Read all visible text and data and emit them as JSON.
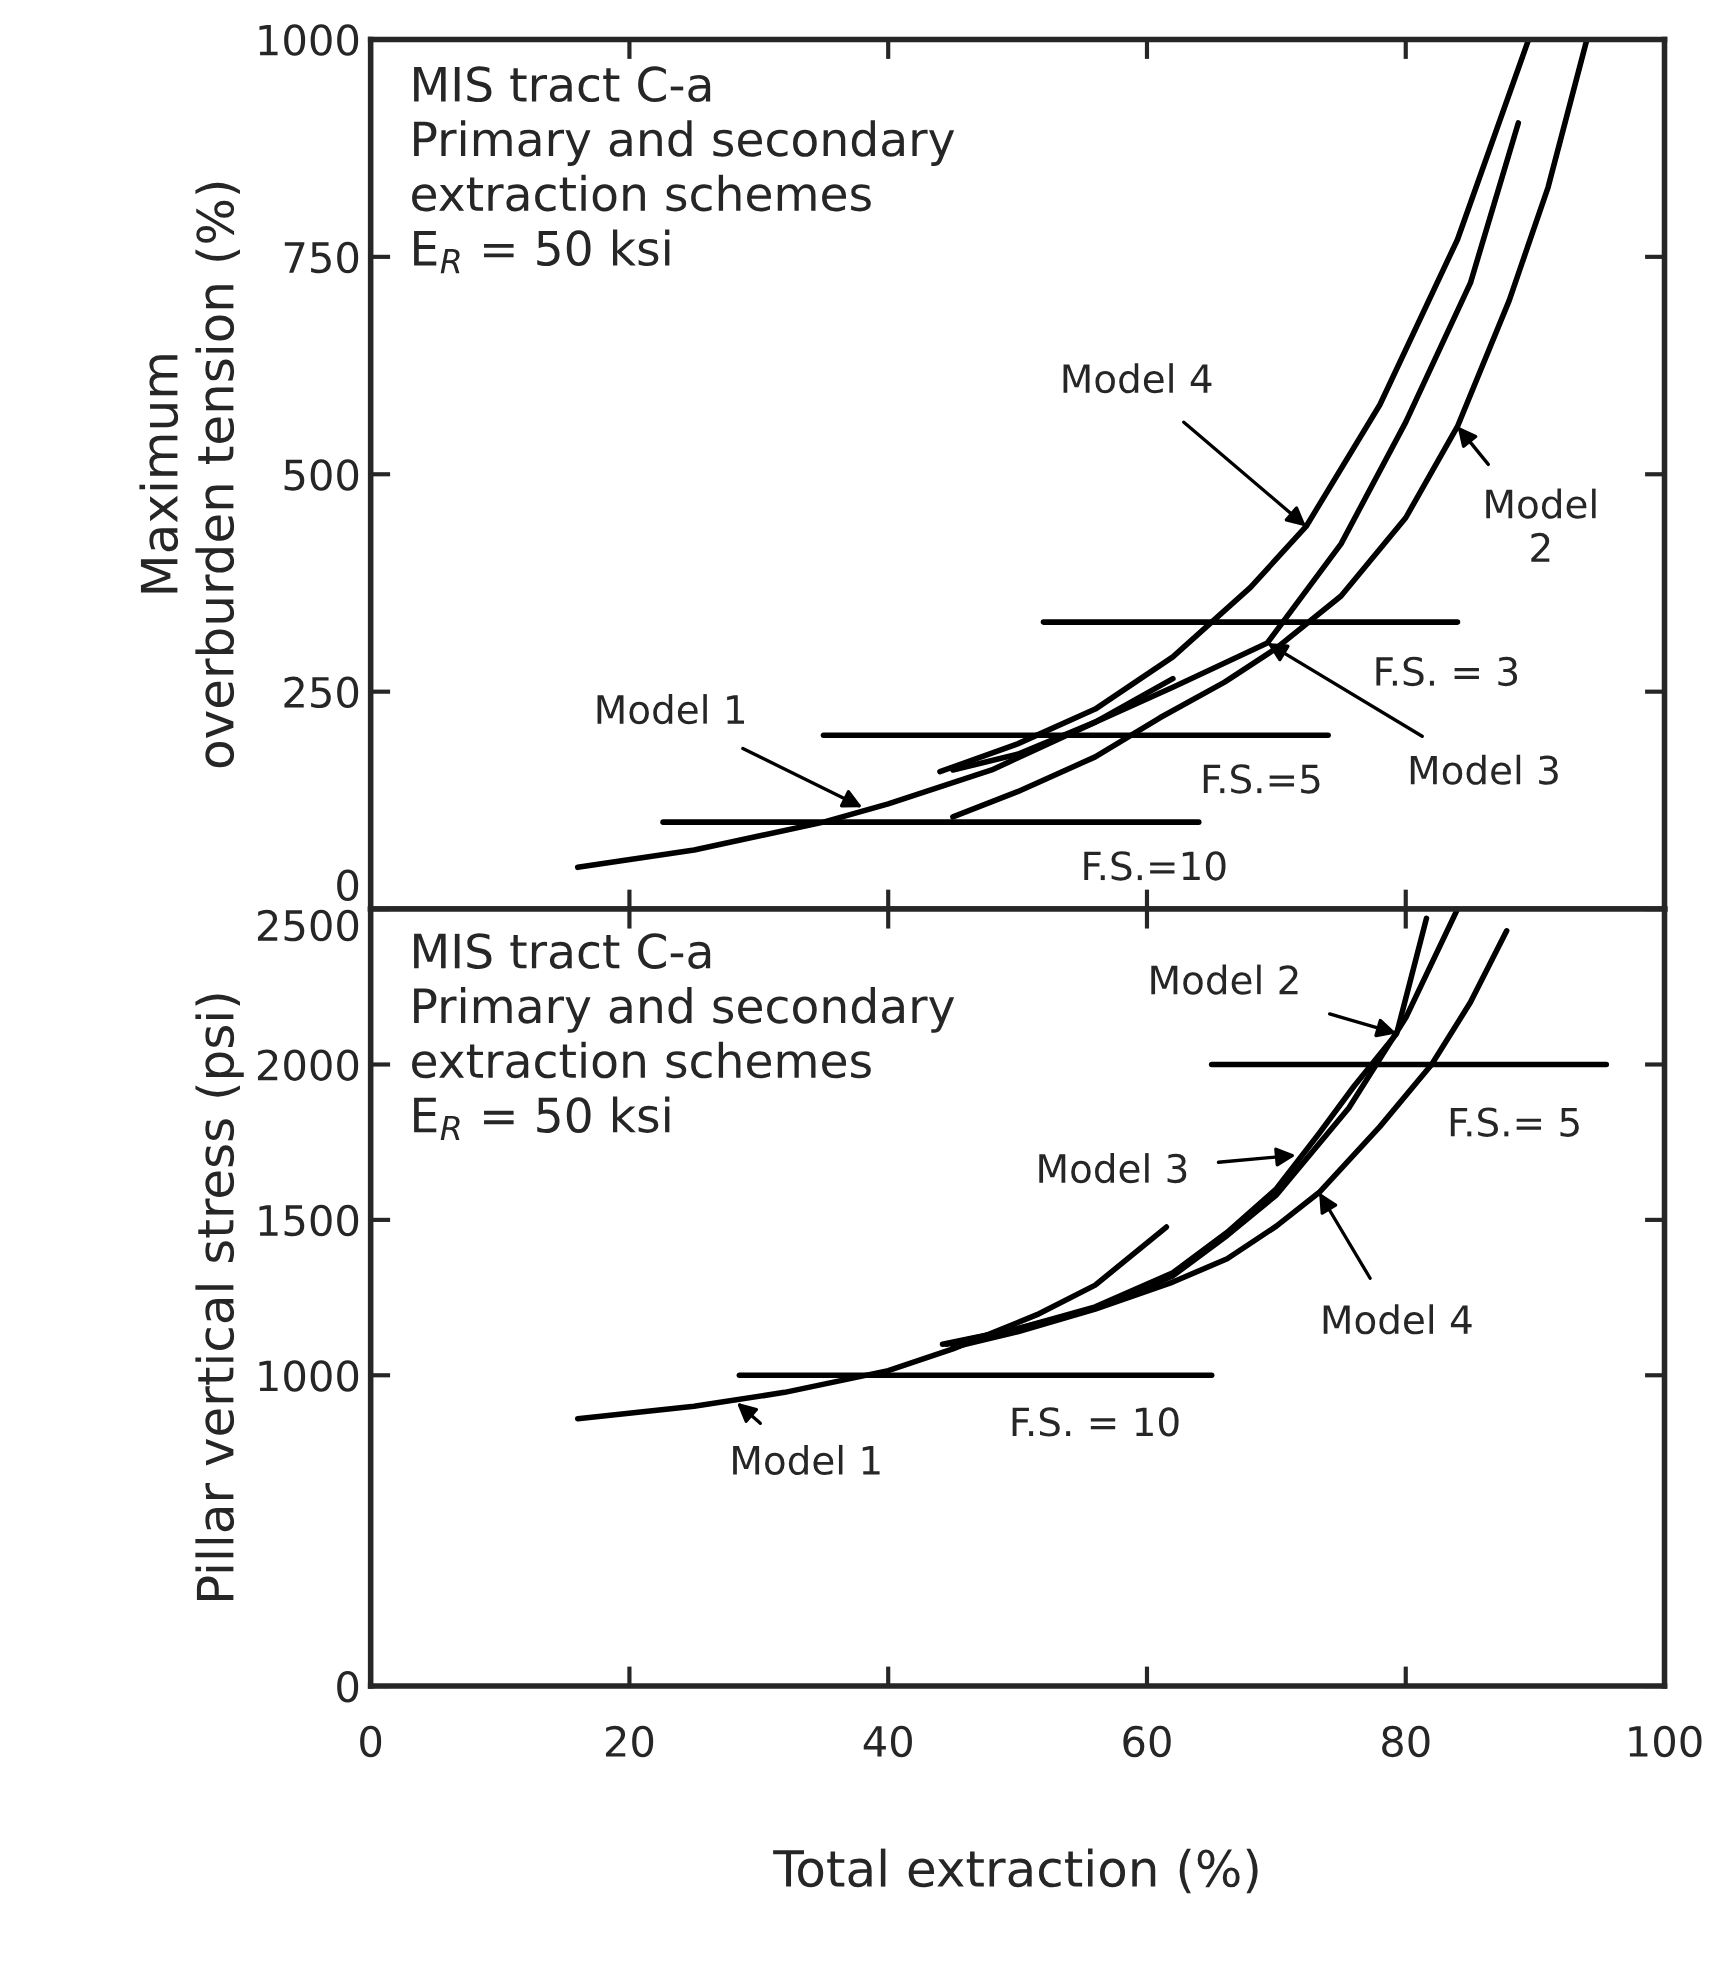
{
  "chart_data": [
    {
      "type": "line",
      "ylabel": "Maximum\noverburden tension (%)",
      "xlim": [
        0,
        100
      ],
      "xticks": [
        0,
        20,
        40,
        60,
        80,
        100
      ],
      "ylim": [
        0,
        1000
      ],
      "yticks": [
        0,
        250,
        500,
        750,
        1000
      ],
      "tick_labels": "y",
      "legend": false,
      "grid": false,
      "series": [
        {
          "color": "#000000",
          "x": [
            16,
            25,
            35,
            40,
            48,
            56,
            62
          ],
          "values": [
            48,
            68,
            100,
            121,
            160,
            215,
            265
          ]
        },
        {
          "color": "#000000",
          "x": [
            45,
            50,
            56,
            61,
            66,
            70,
            75,
            80,
            84,
            88,
            91,
            94
          ],
          "values": [
            106,
            135,
            175,
            220,
            261,
            300,
            360,
            450,
            555,
            700,
            830,
            1000
          ]
        },
        {
          "color": "#000000",
          "x": [
            45,
            50,
            56,
            62,
            69.3,
            75,
            80,
            85,
            88.7
          ],
          "values": [
            160,
            178,
            215,
            255,
            306,
            420,
            560,
            720,
            904
          ]
        },
        {
          "color": "#000000",
          "x": [
            44,
            50,
            56,
            62,
            68,
            72.3,
            78,
            84,
            89.5
          ],
          "values": [
            158,
            190,
            230,
            290,
            370,
            440,
            580,
            770,
            1000
          ]
        },
        {
          "type": "line",
          "color": "#000000",
          "x": [
            22.6,
            64
          ],
          "values": [
            100,
            100
          ]
        },
        {
          "type": "line",
          "color": "#000000",
          "x": [
            35,
            74
          ],
          "values": [
            200,
            200
          ]
        },
        {
          "type": "line",
          "color": "#000000",
          "x": [
            52,
            84
          ],
          "values": [
            330,
            330
          ]
        }
      ],
      "annotations": [
        "MIS tract C-a\nPrimary and secondary\nextraction schemes\nE$_{R}$ = 50 ksi",
        {
          "text": "Model 1",
          "x": 38,
          "y": 117
        },
        {
          "text": "Model 4",
          "x": 72.3,
          "y": 440
        },
        {
          "text": "Model 3",
          "x": 69.3,
          "y": 306
        },
        {
          "text": "Model\n2",
          "x": 84,
          "y": 555
        },
        {
          "text": "F.S.=10",
          "x": 64,
          "y": 100
        },
        {
          "text": "F.S.=5",
          "x": 74,
          "y": 200
        },
        {
          "text": "F.S. = 3",
          "x": 84,
          "y": 330
        }
      ]
    },
    {
      "type": "line",
      "xlabel": "Total extraction (%)",
      "ylabel": "Pillar vertical stress (psi)",
      "xlim": [
        0,
        100
      ],
      "xticks": [
        0,
        20,
        40,
        60,
        80,
        100
      ],
      "ylim": [
        0,
        2500
      ],
      "yticks": [
        0,
        1000,
        1500,
        2000,
        2500
      ],
      "legend": false,
      "grid": false,
      "series": [
        {
          "color": "#000000",
          "x": [
            16,
            25,
            32,
            40,
            45,
            51.5,
            56,
            61.5
          ],
          "values": [
            860,
            900,
            945,
            1015,
            1085,
            1195,
            1290,
            1477
          ]
        },
        {
          "color": "#000000",
          "x": [
            44.2,
            50,
            56,
            62,
            66.2,
            70,
            73.3,
            76,
            79.3,
            81.6
          ],
          "values": [
            1100,
            1150,
            1220,
            1330,
            1460,
            1600,
            1778,
            1930,
            2100,
            2470
          ]
        },
        {
          "color": "#000000",
          "x": [
            44.5,
            50,
            56,
            62,
            66.2,
            70,
            75.6,
            80,
            84
          ],
          "values": [
            1100,
            1150,
            1215,
            1320,
            1450,
            1580,
            1860,
            2150,
            2500
          ]
        },
        {
          "color": "#000000",
          "x": [
            45,
            50,
            56,
            62,
            66.2,
            70,
            73.3,
            78,
            82,
            85,
            87.8
          ],
          "values": [
            1090,
            1140,
            1213,
            1300,
            1375,
            1480,
            1588,
            1800,
            2000,
            2200,
            2430
          ]
        },
        {
          "type": "line",
          "color": "#000000",
          "x": [
            28.5,
            65
          ],
          "values": [
            1000,
            1000
          ]
        },
        {
          "type": "line",
          "color": "#000000",
          "x": [
            65,
            95.5
          ],
          "values": [
            2000,
            2000
          ]
        }
      ],
      "annotations": [
        "MIS tract C-a\nPrimary and secondary\nextraction schemes\nE$_{R}$ = 50 ksi",
        {
          "text": "Model 2",
          "x": 79.3,
          "y": 2100
        },
        {
          "text": "Model 3",
          "x": 71.5,
          "y": 1708
        },
        {
          "text": "Model 4",
          "x": 73.3,
          "y": 1588
        },
        {
          "text": "Model 1",
          "x": 28.3,
          "y": 912
        },
        {
          "text": "F.S. = 10",
          "x": 65,
          "y": 1000
        },
        {
          "text": "F.S.= 5",
          "x": 95.5,
          "y": 2000
        }
      ]
    }
  ]
}
